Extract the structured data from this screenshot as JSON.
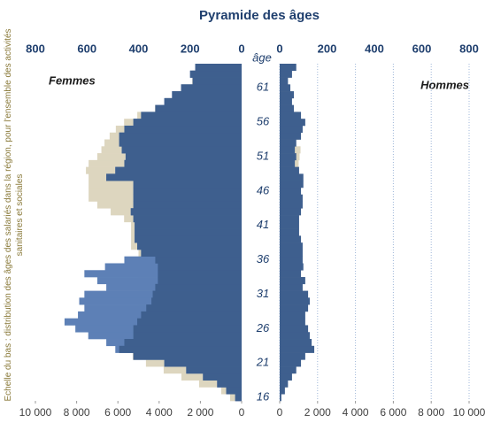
{
  "chart_data": {
    "type": "pyramid",
    "title": "Pyramide des âges",
    "y_label": "âge",
    "note": "Echelle du bas : distribution des âges des salariés dans la région, pour l'ensemble des activités sanitaires et sociales",
    "categories": [
      16,
      null,
      null,
      null,
      null,
      21,
      null,
      null,
      null,
      null,
      26,
      null,
      null,
      null,
      null,
      31,
      null,
      null,
      null,
      null,
      36,
      null,
      null,
      null,
      null,
      41,
      null,
      null,
      null,
      null,
      46,
      null,
      null,
      null,
      null,
      51,
      null,
      null,
      null,
      null,
      56,
      null,
      null,
      null,
      null,
      61,
      null,
      null,
      null
    ],
    "left": {
      "label": "Femmes",
      "xlim": [
        0,
        800
      ],
      "xticks": [
        800,
        600,
        400,
        200,
        0
      ],
      "x2lim": [
        0,
        10000
      ],
      "x2ticks": [
        {
          "value": 10000,
          "label": "10 000"
        },
        {
          "value": 8000,
          "label": "8 000"
        },
        {
          "value": 6000,
          "label": "6 000"
        },
        {
          "value": 4000,
          "label": "4 000"
        },
        {
          "value": 2000,
          "label": "2 000"
        },
        0
      ],
      "series": [
        {
          "color": "#ddd6bf",
          "axis": "x2",
          "values": [
            560,
            990,
            2060,
            2920,
            3780,
            4640,
            5280,
            5500,
            5400,
            5200,
            5000,
            5000,
            5000,
            5000,
            5000,
            5000,
            5000,
            5000,
            5000,
            5000,
            5000,
            5000,
            5360,
            5360,
            5360,
            5360,
            5700,
            6350,
            7000,
            7420,
            7420,
            7420,
            7420,
            7550,
            7420,
            7000,
            6800,
            6650,
            6400,
            6100,
            5700,
            5060,
            4200,
            3700,
            3300,
            2900,
            2400,
            2400,
            2200
          ]
        },
        {
          "color": "#5d80b6",
          "values": [
            25,
            60,
            95,
            150,
            215,
            300,
            420,
            490,
            525,
            595,
            645,
            687,
            635,
            610,
            630,
            610,
            525,
            560,
            610,
            530,
            455,
            390,
            405,
            415,
            415,
            415,
            420,
            430,
            420,
            420,
            420,
            420,
            525,
            490,
            455,
            450,
            465,
            475,
            475,
            455,
            420,
            390,
            335,
            300,
            270,
            235,
            190,
            200,
            180
          ]
        },
        {
          "color": "#3e5f8e",
          "values": [
            25,
            60,
            95,
            150,
            215,
            300,
            420,
            475,
            455,
            420,
            420,
            405,
            390,
            370,
            350,
            345,
            335,
            325,
            325,
            325,
            335,
            390,
            405,
            415,
            415,
            415,
            420,
            430,
            420,
            420,
            420,
            420,
            525,
            490,
            455,
            450,
            465,
            475,
            475,
            455,
            420,
            390,
            335,
            300,
            270,
            235,
            190,
            200,
            180
          ]
        }
      ]
    },
    "right": {
      "label": "Hommes",
      "xlim": [
        0,
        800
      ],
      "xticks": [
        0,
        200,
        400,
        600,
        800
      ],
      "x2lim": [
        0,
        10000
      ],
      "x2ticks": [
        0,
        {
          "value": 2000,
          "label": "2 000"
        },
        {
          "value": 4000,
          "label": "4 000"
        },
        {
          "value": 6000,
          "label": "6 000"
        },
        {
          "value": 8000,
          "label": "8 000"
        },
        {
          "value": 10000,
          "label": "10 000"
        }
      ],
      "grid": true,
      "series": [
        {
          "color": "#ddd6bf",
          "axis": "x2",
          "values": [
            60,
            200,
            400,
            600,
            800,
            1000,
            1200,
            1600,
            1500,
            1400,
            1300,
            1200,
            1200,
            1300,
            1400,
            1300,
            1100,
            1200,
            1000,
            1100,
            1100,
            1100,
            1100,
            1000,
            1000,
            1000,
            1000,
            1100,
            1100,
            1100,
            1000,
            1100,
            1100,
            1000,
            1000,
            1050,
            1100,
            800,
            1000,
            1100,
            1200,
            1000,
            700,
            600,
            700,
            500,
            400,
            600,
            800
          ]
        },
        {
          "color": "#3e5f8e",
          "values": [
            7,
            22,
            35,
            52,
            70,
            90,
            108,
            146,
            135,
            127,
            120,
            108,
            108,
            120,
            127,
            120,
            97,
            108,
            90,
            100,
            97,
            97,
            97,
            90,
            82,
            82,
            82,
            90,
            97,
            97,
            90,
            100,
            100,
            82,
            64,
            70,
            64,
            70,
            90,
            97,
            108,
            90,
            60,
            52,
            60,
            45,
            35,
            52,
            70
          ]
        }
      ]
    }
  }
}
